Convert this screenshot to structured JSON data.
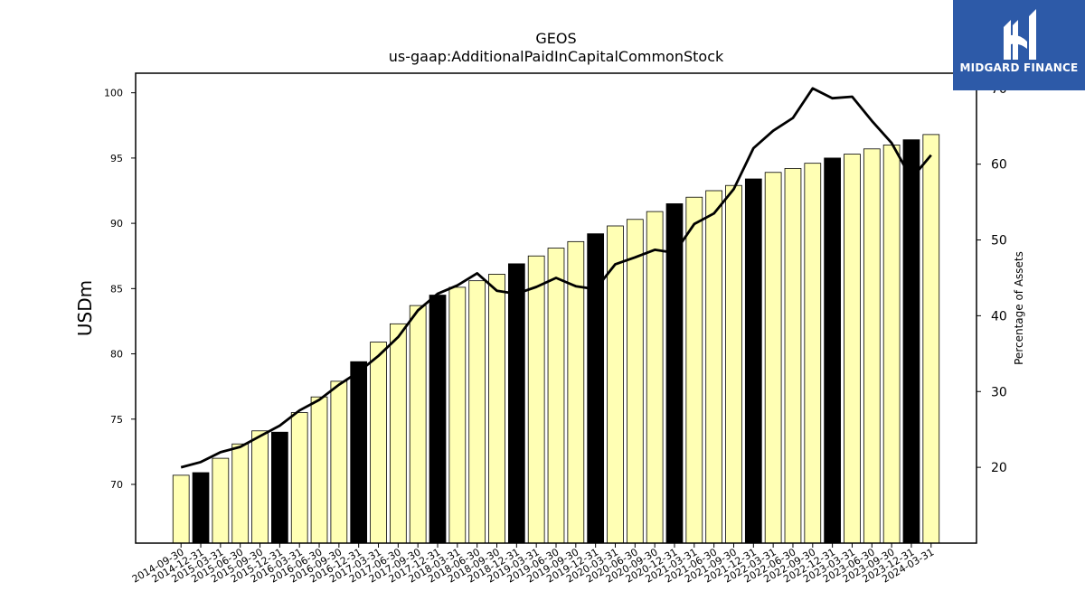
{
  "brand": {
    "name": "MIDGARD FINANCE"
  },
  "chart_data": {
    "type": "bar+line",
    "title": "GEOS",
    "subtitle": "us-gaap:AdditionalPaidInCapitalCommonStock",
    "ylabel": "USDm",
    "y2label": "Percentage of Assets",
    "ylim": [
      65.5,
      101.5
    ],
    "y2lim": [
      10,
      72
    ],
    "yticks": [
      70,
      75,
      80,
      85,
      90,
      95,
      100
    ],
    "y2ticks": [
      20,
      30,
      40,
      50,
      60,
      70
    ],
    "categories": [
      "2014-09-30",
      "2014-12-31",
      "2015-03-31",
      "2015-06-30",
      "2015-09-30",
      "2015-12-31",
      "2016-03-31",
      "2016-06-30",
      "2016-09-30",
      "2016-12-31",
      "2017-03-31",
      "2017-06-30",
      "2017-09-30",
      "2017-12-31",
      "2018-03-31",
      "2018-06-30",
      "2018-09-30",
      "2018-12-31",
      "2019-03-31",
      "2019-06-30",
      "2019-09-30",
      "2019-12-31",
      "2020-03-31",
      "2020-06-30",
      "2020-09-30",
      "2020-12-31",
      "2021-03-31",
      "2021-06-30",
      "2021-09-30",
      "2021-12-31",
      "2022-03-31",
      "2022-06-30",
      "2022-09-30",
      "2022-12-31",
      "2023-03-31",
      "2023-06-30",
      "2023-09-30",
      "2023-12-31",
      "2024-03-31"
    ],
    "series": [
      {
        "type": "bar",
        "values": [
          70.7,
          70.9,
          72.0,
          73.1,
          74.1,
          74.0,
          75.5,
          76.7,
          77.9,
          79.4,
          80.9,
          82.3,
          83.7,
          84.5,
          85.1,
          85.6,
          86.1,
          86.9,
          87.5,
          88.1,
          88.6,
          89.2,
          89.8,
          90.3,
          90.9,
          91.5,
          92.0,
          92.5,
          92.9,
          93.4,
          93.9,
          94.2,
          94.6,
          95.0,
          95.3,
          95.7,
          96.0,
          96.4,
          96.8
        ],
        "highlight": [
          false,
          true,
          false,
          false,
          false,
          true,
          false,
          false,
          false,
          true,
          false,
          false,
          false,
          true,
          false,
          false,
          false,
          true,
          false,
          false,
          false,
          true,
          false,
          false,
          false,
          true,
          false,
          false,
          false,
          true,
          false,
          false,
          false,
          true,
          false,
          false,
          false,
          true,
          false
        ],
        "color": "#ffffb4",
        "highlight_color": "#000000"
      },
      {
        "type": "line",
        "axis": "y2",
        "values": [
          20.0,
          20.7,
          22.0,
          22.7,
          24.1,
          25.5,
          27.5,
          28.9,
          30.9,
          32.6,
          34.7,
          37.2,
          40.7,
          42.9,
          44.0,
          45.6,
          43.3,
          42.9,
          43.8,
          45.0,
          43.9,
          43.5,
          46.8,
          47.7,
          48.7,
          48.3,
          52.1,
          53.5,
          56.7,
          62.1,
          64.4,
          66.1,
          70.0,
          68.7,
          68.9,
          65.7,
          62.8,
          58.1,
          61.2
        ],
        "color": "#000000"
      }
    ]
  }
}
